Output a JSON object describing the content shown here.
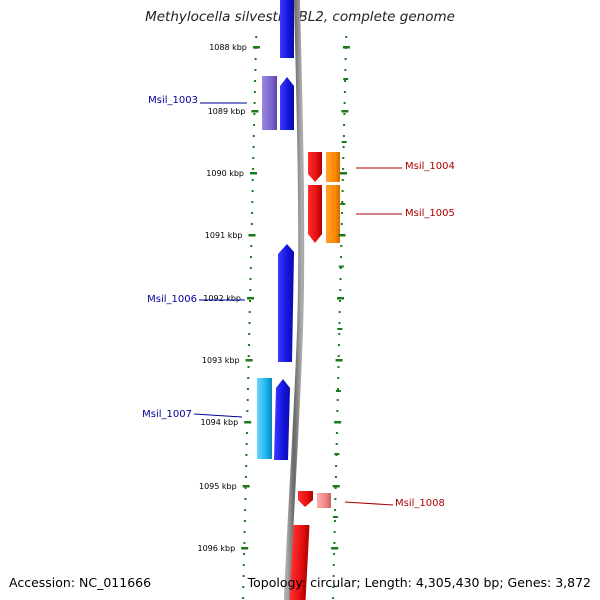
{
  "title": "Methylocella silvestris BL2, complete genome",
  "footer": {
    "accession": "Accession: NC_011666",
    "stats": "Topology: circular; Length: 4,305,430 bp; Genes: 3,872"
  },
  "axis_ticks": [
    "1088 kbp",
    "1089 kbp",
    "1090 kbp",
    "1091 kbp",
    "1092 kbp",
    "1093 kbp",
    "1094 kbp",
    "1095 kbp",
    "1096 kbp"
  ],
  "gene_labels": [
    "Msil_1003",
    "Msil_1004",
    "Msil_1005",
    "Msil_1006",
    "Msil_1007",
    "Msil_1008"
  ],
  "colors": {
    "forward_gene": "#1a1aee",
    "reverse_gene": "#ee1111",
    "orange_gene": "#ff8c00",
    "cyan_gene": "#1fb5ee",
    "lavender_gene": "#7b66cc",
    "pink_gene": "#ee8888",
    "backbone": "#888888",
    "tick": "#1a7a1a",
    "forward_label": "#00009a",
    "reverse_label": "#aa0000"
  }
}
